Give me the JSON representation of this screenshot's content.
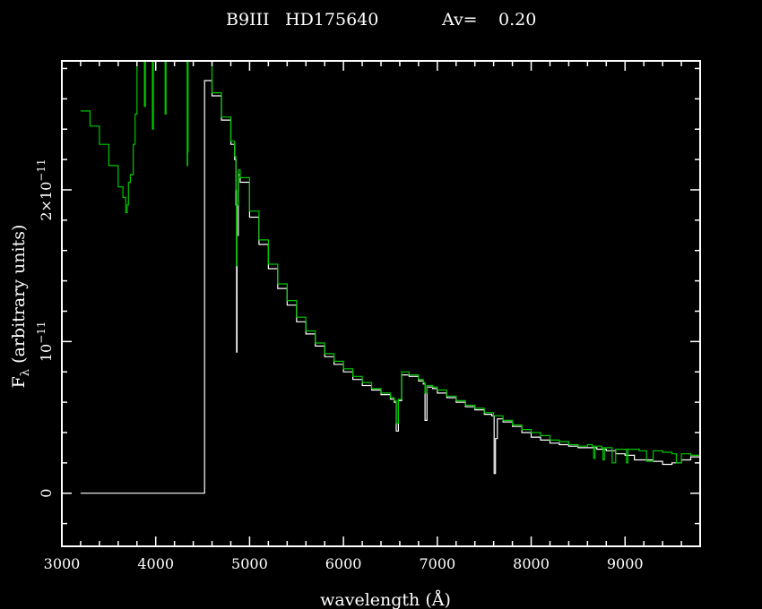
{
  "chart_data": {
    "type": "line",
    "title_parts": [
      "B9III",
      "HD175640",
      "Av=",
      "0.20"
    ],
    "xlabel": "wavelength (Å)",
    "ylabel_main": "F",
    "ylabel_sub": "λ",
    "ylabel_rest": " (arbitrary units)",
    "xlim": [
      3000,
      9800
    ],
    "ylim": [
      -3.5e-12,
      2.85e-11
    ],
    "x_ticks": [
      3000,
      4000,
      5000,
      6000,
      7000,
      8000,
      9000
    ],
    "x_tick_labels": [
      "3000",
      "4000",
      "5000",
      "6000",
      "7000",
      "8000",
      "9000"
    ],
    "y_ticks": [
      0,
      1e-11,
      2e-11
    ],
    "y_tick_labels": [
      {
        "mantissa": "0",
        "exp": ""
      },
      {
        "mantissa": "10",
        "exp": "−11"
      },
      {
        "mantissa": "2×10",
        "exp": "−11"
      }
    ],
    "colors": {
      "background": "#000000",
      "axes": "#ffffff",
      "observed": "#ffffff",
      "model": "#00c800"
    },
    "series": [
      {
        "color": "#ffffff",
        "x": [
          3200,
          4490,
          4500,
          4520,
          4600,
          4700,
          4800,
          4840,
          4855,
          4861,
          4866,
          4880,
          4900,
          5000,
          5100,
          5200,
          5300,
          5400,
          5500,
          5600,
          5700,
          5800,
          5900,
          6000,
          6100,
          6200,
          6300,
          6400,
          6500,
          6540,
          6562,
          6585,
          6620,
          6700,
          6800,
          6850,
          6869,
          6890,
          6950,
          7000,
          7100,
          7200,
          7300,
          7400,
          7500,
          7580,
          7605,
          7620,
          7640,
          7700,
          7800,
          7900,
          8000,
          8100,
          8200,
          8300,
          8400,
          8500,
          8600,
          8700,
          8800,
          8900,
          9000,
          9100,
          9200,
          9300,
          9400,
          9500,
          9600,
          9700,
          9800
        ],
        "y": [
          0,
          0,
          0,
          2.72e-11,
          2.62e-11,
          2.46e-11,
          2.3e-11,
          2.2e-11,
          1.9e-11,
          9.3e-12,
          1.7e-11,
          2.1e-11,
          2.05e-11,
          1.82e-11,
          1.64e-11,
          1.48e-11,
          1.35e-11,
          1.24e-11,
          1.13e-11,
          1.05e-11,
          9.7e-12,
          9e-12,
          8.5e-12,
          8e-12,
          7.5e-12,
          7.1e-12,
          6.8e-12,
          6.5e-12,
          6.2e-12,
          6e-12,
          4.1e-12,
          6.1e-12,
          7.8e-12,
          7.7e-12,
          7.4e-12,
          7.2e-12,
          4.8e-12,
          7e-12,
          6.9e-12,
          6.6e-12,
          6.3e-12,
          6e-12,
          5.7e-12,
          5.5e-12,
          5.2e-12,
          5.1e-12,
          1.3e-12,
          3.6e-12,
          4.9e-12,
          4.7e-12,
          4.4e-12,
          4e-12,
          3.7e-12,
          3.5e-12,
          3.3e-12,
          3.2e-12,
          3.1e-12,
          3e-12,
          3e-12,
          2.9e-12,
          2.8e-12,
          2.6e-12,
          2.5e-12,
          2.2e-12,
          2.2e-12,
          2.1e-12,
          1.9e-12,
          2e-12,
          2.2e-12,
          2.4e-12,
          2.4e-12
        ]
      },
      {
        "color": "#00c800",
        "x": [
          3200,
          3300,
          3400,
          3500,
          3600,
          3650,
          3680,
          3695,
          3710,
          3730,
          3760,
          3780,
          3800,
          3800,
          3870,
          3880,
          3890,
          3900,
          3960,
          3965,
          3975,
          3985,
          4090,
          4100,
          4110,
          4120,
          4330,
          4335,
          4340,
          4345,
          4350,
          4500,
          4600,
          4700,
          4800,
          4840,
          4855,
          4861,
          4866,
          4880,
          4900,
          5000,
          5100,
          5200,
          5300,
          5400,
          5500,
          5600,
          5700,
          5800,
          5900,
          6000,
          6100,
          6200,
          6300,
          6400,
          6500,
          6540,
          6562,
          6585,
          6620,
          6700,
          6800,
          6850,
          6869,
          6890,
          6950,
          7000,
          7100,
          7200,
          7300,
          7400,
          7500,
          7600,
          7700,
          7800,
          7900,
          8000,
          8100,
          8200,
          8300,
          8400,
          8500,
          8600,
          8650,
          8665,
          8680,
          8700,
          8750,
          8765,
          8780,
          8820,
          8862,
          8900,
          8950,
          9000,
          9015,
          9030,
          9100,
          9150,
          9229,
          9300,
          9400,
          9500,
          9546,
          9600,
          9700,
          9800
        ],
        "y": [
          2.52e-11,
          2.42e-11,
          2.3e-11,
          2.16e-11,
          2.02e-11,
          1.95e-11,
          1.85e-11,
          1.9e-11,
          2.05e-11,
          2.1e-11,
          2.3e-11,
          2.5e-11,
          2.9e-11,
          2.9e-11,
          2.9e-11,
          2.55e-11,
          2.9e-11,
          2.9e-11,
          2.9e-11,
          2.4e-11,
          2.9e-11,
          2.9e-11,
          2.9e-11,
          2.5e-11,
          2.9e-11,
          2.9e-11,
          2.9e-11,
          2.16e-11,
          2.25e-11,
          2.9e-11,
          2.9e-11,
          2.9e-11,
          2.64e-11,
          2.48e-11,
          2.32e-11,
          2.22e-11,
          2e-11,
          1.5e-11,
          1.9e-11,
          2.13e-11,
          2.08e-11,
          1.86e-11,
          1.67e-11,
          1.51e-11,
          1.38e-11,
          1.27e-11,
          1.16e-11,
          1.07e-11,
          9.9e-12,
          9.2e-12,
          8.7e-12,
          8.2e-12,
          7.7e-12,
          7.3e-12,
          6.9e-12,
          6.6e-12,
          6.3e-12,
          6.1e-12,
          4.6e-12,
          6.2e-12,
          8e-12,
          7.8e-12,
          7.5e-12,
          7.3e-12,
          6.6e-12,
          7.1e-12,
          7e-12,
          6.8e-12,
          6.4e-12,
          6.1e-12,
          5.8e-12,
          5.6e-12,
          5.3e-12,
          5.1e-12,
          4.8e-12,
          4.5e-12,
          4.2e-12,
          4e-12,
          3.8e-12,
          3.5e-12,
          3.4e-12,
          3.2e-12,
          3.1e-12,
          3.2e-12,
          3.1e-12,
          2.3e-12,
          3.1e-12,
          3.1e-12,
          3e-12,
          2.2e-12,
          3e-12,
          3e-12,
          2e-12,
          2.9e-12,
          2.9e-12,
          2.9e-12,
          2e-12,
          2.9e-12,
          2.9e-12,
          2.8e-12,
          2.1e-12,
          2.8e-12,
          2.7e-12,
          2.6e-12,
          2e-12,
          2.6e-12,
          2.5e-12,
          2.4e-12
        ]
      }
    ]
  }
}
